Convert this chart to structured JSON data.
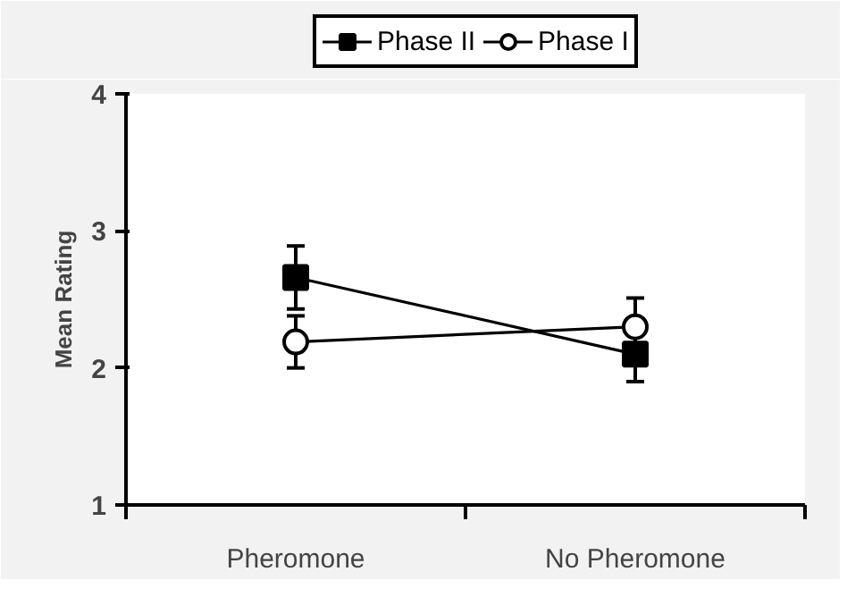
{
  "chart_data": {
    "type": "line",
    "ylabel": "Mean Rating",
    "categories": [
      "Pheromone",
      "No Pheromone"
    ],
    "series": [
      {
        "name": "Phase II",
        "color": "#000000",
        "marker": "square",
        "values": [
          2.66,
          2.1
        ],
        "errors": [
          0.23,
          0.2
        ]
      },
      {
        "name": "Phase I",
        "color": "#000000",
        "marker": "circle",
        "values": [
          2.19,
          2.3
        ],
        "errors": [
          0.19,
          0.21
        ]
      }
    ],
    "ylim": [
      1,
      4
    ],
    "yticks": [
      1,
      2,
      3,
      4
    ],
    "grid": false,
    "legend": "top",
    "line_style": "solid"
  }
}
